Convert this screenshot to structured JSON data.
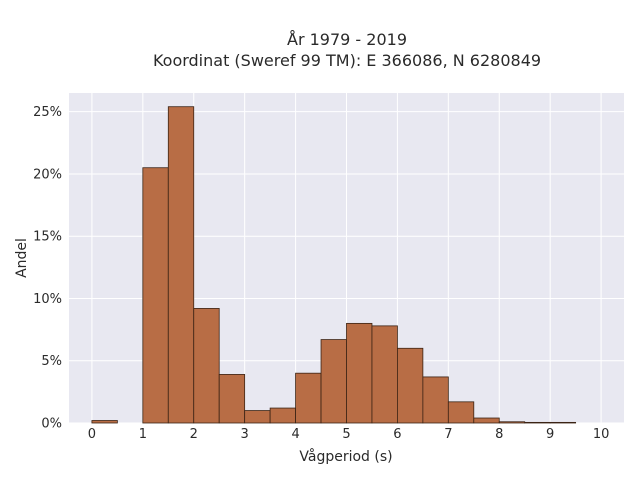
{
  "chart_data": {
    "type": "bar",
    "title_line1": "År 1979 - 2019",
    "title_line2": "Koordinat (Sweref 99 TM): E 366086, N 6280849",
    "xlabel": "Vågperiod (s)",
    "ylabel": "Andel",
    "bin_width": 0.5,
    "bins": [
      {
        "x0": 0.0,
        "value": 0.2
      },
      {
        "x0": 0.5,
        "value": 0.0
      },
      {
        "x0": 1.0,
        "value": 20.5
      },
      {
        "x0": 1.5,
        "value": 25.4
      },
      {
        "x0": 2.0,
        "value": 9.2
      },
      {
        "x0": 2.5,
        "value": 3.9
      },
      {
        "x0": 3.0,
        "value": 1.0
      },
      {
        "x0": 3.5,
        "value": 1.2
      },
      {
        "x0": 4.0,
        "value": 4.0
      },
      {
        "x0": 4.5,
        "value": 6.7
      },
      {
        "x0": 5.0,
        "value": 8.0
      },
      {
        "x0": 5.5,
        "value": 7.8
      },
      {
        "x0": 6.0,
        "value": 6.0
      },
      {
        "x0": 6.5,
        "value": 3.7
      },
      {
        "x0": 7.0,
        "value": 1.7
      },
      {
        "x0": 7.5,
        "value": 0.4
      },
      {
        "x0": 8.0,
        "value": 0.1
      },
      {
        "x0": 8.5,
        "value": 0.05
      },
      {
        "x0": 9.0,
        "value": 0.05
      },
      {
        "x0": 9.5,
        "value": 0.0
      }
    ],
    "xlim": [
      -0.45,
      10.45
    ],
    "ylim": [
      0,
      26.5
    ],
    "xticks": [
      0,
      1,
      2,
      3,
      4,
      5,
      6,
      7,
      8,
      9,
      10
    ],
    "xtick_labels": [
      "0",
      "1",
      "2",
      "3",
      "4",
      "5",
      "6",
      "7",
      "8",
      "9",
      "10"
    ],
    "yticks": [
      0,
      5,
      10,
      15,
      20,
      25
    ],
    "ytick_labels": [
      "0%",
      "5%",
      "10%",
      "15%",
      "20%",
      "25%"
    ],
    "grid": true,
    "colors": {
      "bar_fill": "#b86d45",
      "bar_stroke": "#3b2314",
      "plot_background": "#e8e8f1",
      "grid": "#ffffff"
    }
  }
}
